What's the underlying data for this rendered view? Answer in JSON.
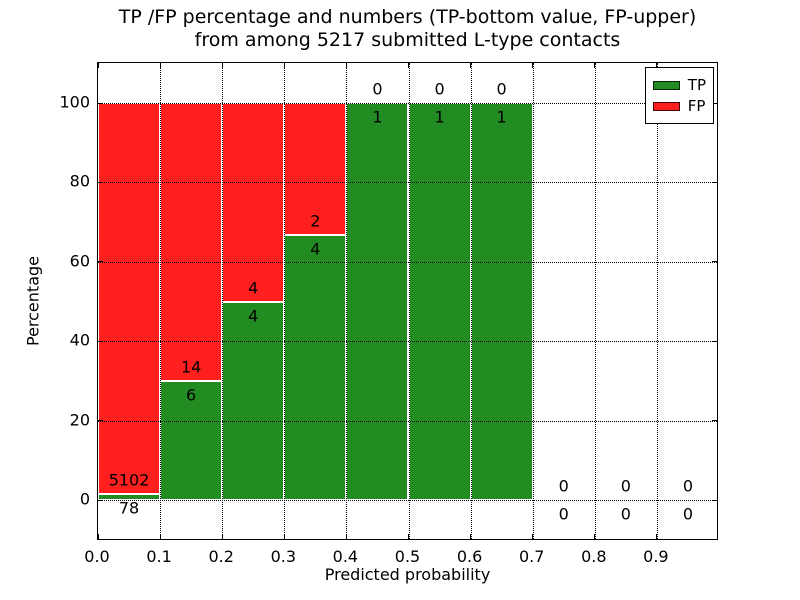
{
  "chart_data": {
    "type": "bar",
    "subtype": "stacked-percentage-histogram",
    "title": "TP /FP percentage and numbers (TP-bottom value, FP-upper) from among 5217 submitted L-type contacts",
    "title_lines": [
      "TP /FP percentage and numbers (TP-bottom value, FP-upper)",
      "from among 5217 submitted L-type contacts"
    ],
    "total_contacts": 5217,
    "xlabel": "Predicted probability",
    "ylabel": "Percentage",
    "xlim": [
      0.0,
      1.0
    ],
    "ylim": [
      -11,
      110
    ],
    "xticks": [
      "0.0",
      "0.1",
      "0.2",
      "0.3",
      "0.4",
      "0.5",
      "0.6",
      "0.7",
      "0.8",
      "0.9"
    ],
    "yticks": [
      "0",
      "20",
      "40",
      "60",
      "80",
      "100"
    ],
    "grid": "dotted black, drawn over bars",
    "bar_edge_color": "#ffffff",
    "colors": {
      "tp": "#228b22",
      "fp": "#ff1f1f"
    },
    "legend": {
      "position": "upper-right",
      "entries": [
        {
          "label": "TP",
          "color": "#228b22"
        },
        {
          "label": "FP",
          "color": "#ff1f1f"
        }
      ]
    },
    "bins": [
      {
        "range": [
          0.0,
          0.1
        ],
        "tp": 78,
        "fp": 5102
      },
      {
        "range": [
          0.1,
          0.2
        ],
        "tp": 6,
        "fp": 14
      },
      {
        "range": [
          0.2,
          0.3
        ],
        "tp": 4,
        "fp": 4
      },
      {
        "range": [
          0.3,
          0.4
        ],
        "tp": 4,
        "fp": 2
      },
      {
        "range": [
          0.4,
          0.5
        ],
        "tp": 1,
        "fp": 0
      },
      {
        "range": [
          0.5,
          0.6
        ],
        "tp": 1,
        "fp": 0
      },
      {
        "range": [
          0.6,
          0.7
        ],
        "tp": 1,
        "fp": 0
      },
      {
        "range": [
          0.7,
          0.8
        ],
        "tp": 0,
        "fp": 0
      },
      {
        "range": [
          0.8,
          0.9
        ],
        "tp": 0,
        "fp": 0
      },
      {
        "range": [
          0.9,
          1.0
        ],
        "tp": 0,
        "fp": 0
      }
    ]
  }
}
